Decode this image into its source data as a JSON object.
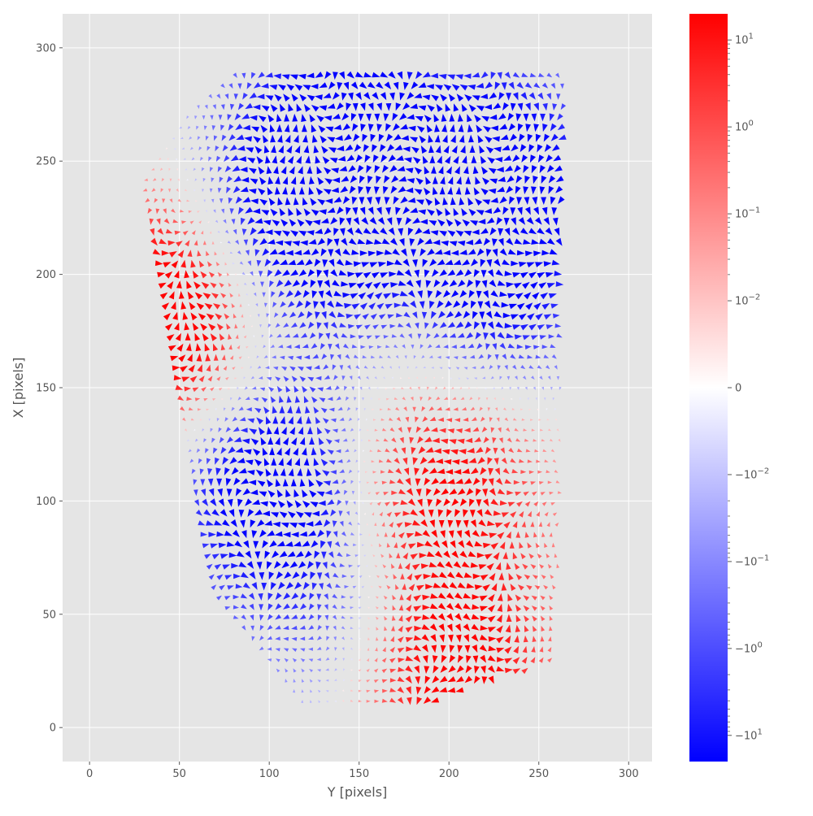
{
  "chart_data": {
    "type": "quiver",
    "xlabel": "Y [pixels]",
    "ylabel": "X [pixels]",
    "xlim": [
      -15,
      313
    ],
    "ylim": [
      -15,
      315
    ],
    "xticks": [
      0,
      50,
      100,
      150,
      200,
      250,
      300
    ],
    "yticks": [
      0,
      50,
      100,
      150,
      200,
      250,
      300
    ],
    "grid": true,
    "background": "#e5e5e5",
    "colormap": "bwr",
    "colorbar": {
      "scale": "symlog",
      "range": [
        -20,
        20
      ],
      "tick_labels": [
        "10^1",
        "10^0",
        "10^-1",
        "10^-2",
        "0",
        "-10^-2",
        "-10^-1",
        "-10^0",
        "-10^1"
      ],
      "tick_values": [
        10,
        1,
        0.1,
        0.01,
        0,
        -0.01,
        -0.1,
        -1,
        -10
      ]
    },
    "field_region": {
      "description": "irregular face-shaped region of arrows",
      "x_range_by_row": [
        {
          "y": 8,
          "x": [
            122,
            180
          ]
        },
        {
          "y": 30,
          "x": [
            100,
            260
          ]
        },
        {
          "y": 60,
          "x": [
            70,
            260
          ]
        },
        {
          "y": 100,
          "x": [
            60,
            262
          ]
        },
        {
          "y": 150,
          "x": [
            50,
            262
          ]
        },
        {
          "y": 200,
          "x": [
            40,
            262
          ]
        },
        {
          "y": 240,
          "x": [
            30,
            262
          ]
        },
        {
          "y": 270,
          "x": [
            55,
            265
          ]
        },
        {
          "y": 290,
          "x": [
            85,
            265
          ]
        }
      ]
    },
    "sign_regions": [
      {
        "sign": "positive",
        "label": "left edge band",
        "center": [
          50,
          180
        ],
        "strength": 8
      },
      {
        "sign": "positive",
        "label": "lower chin band",
        "center": [
          200,
          25
        ],
        "strength": 6
      },
      {
        "sign": "positive",
        "label": "central diagonal band",
        "center": [
          210,
          130
        ],
        "strength": 5
      },
      {
        "sign": "positive",
        "label": "middle-lower band",
        "center": [
          170,
          90
        ],
        "strength": 4
      },
      {
        "sign": "negative",
        "label": "upper-left cheek",
        "center": [
          110,
          220
        ],
        "strength": 6
      },
      {
        "sign": "negative",
        "label": "upper-middle",
        "center": [
          140,
          260
        ],
        "strength": 6
      },
      {
        "sign": "negative",
        "label": "upper-right eye",
        "center": [
          225,
          240
        ],
        "strength": 7
      },
      {
        "sign": "negative",
        "label": "left-middle",
        "center": [
          100,
          110
        ],
        "strength": 7
      },
      {
        "sign": "negative",
        "label": "right-middle",
        "center": [
          220,
          170
        ],
        "strength": 5
      },
      {
        "sign": "negative",
        "label": "lower-middle",
        "center": [
          150,
          60
        ],
        "strength": 4
      }
    ]
  }
}
